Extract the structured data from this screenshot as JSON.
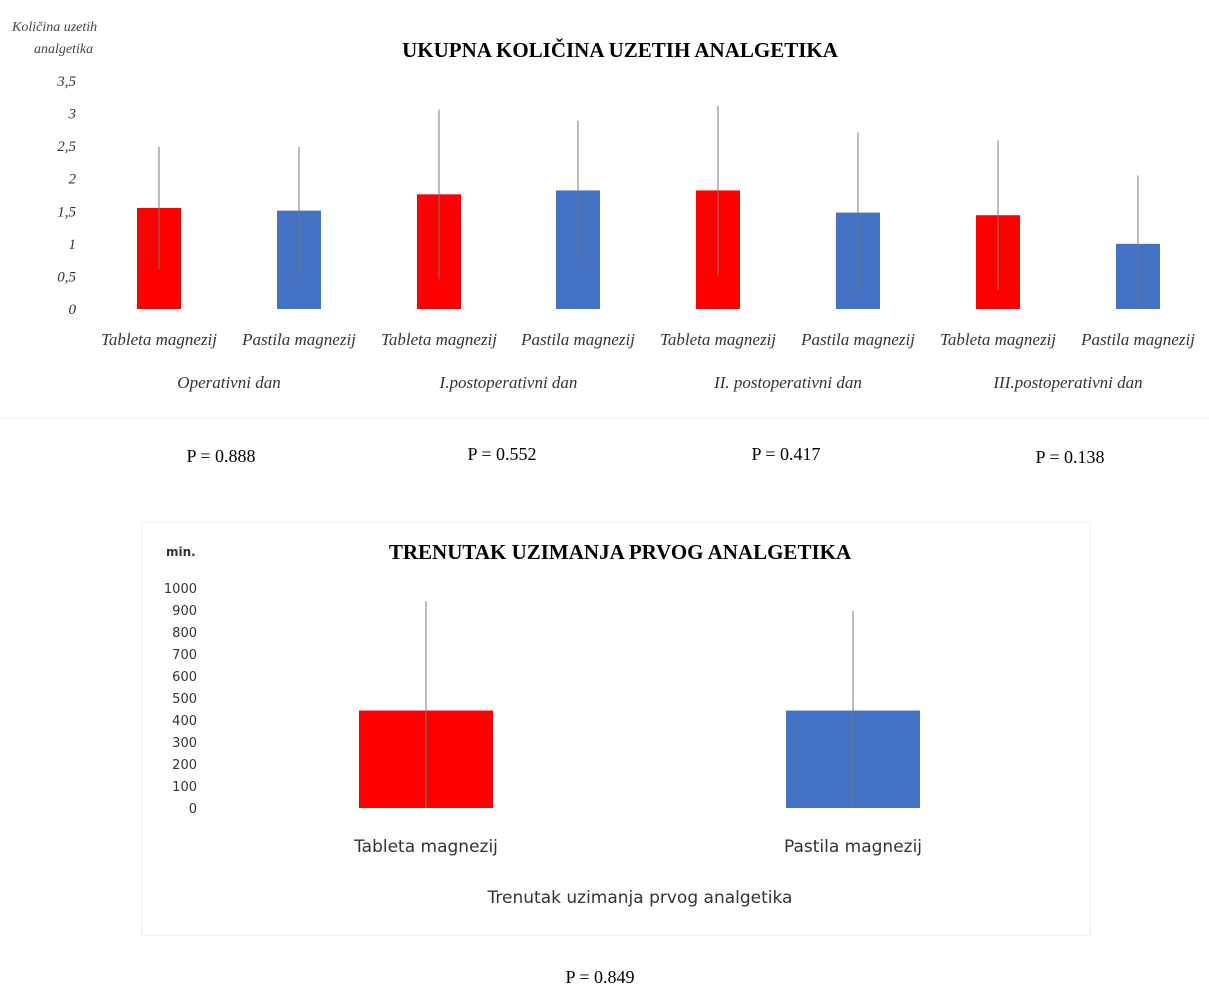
{
  "colors": {
    "tableta": "#ff0000",
    "pastila": "#4472c4",
    "errorbar": "#777777"
  },
  "chart_data": [
    {
      "type": "bar",
      "title": "UKUPNA KOLIČINA UZETIH ANALGETIKA",
      "ylabel_lines": [
        "Količina uzetih",
        "analgetika"
      ],
      "ylim": [
        0,
        3.5
      ],
      "yticks": [
        "0",
        "0,5",
        "1",
        "1,5",
        "2",
        "2,5",
        "3",
        "3,5"
      ],
      "groups": [
        "Operativni dan",
        "I.postoperativni dan",
        "II. postoperativni dan",
        "III.postoperativni dan"
      ],
      "categories": [
        "Tableta magnezij",
        "Pastila magnezij",
        "Tableta magnezij",
        "Pastila magnezij",
        "Tableta magnezij",
        "Pastila magnezij",
        "Tableta magnezij",
        "Pastila magnezij"
      ],
      "values": [
        1.55,
        1.51,
        1.76,
        1.82,
        1.82,
        1.48,
        1.44,
        1.0
      ],
      "error": [
        0.94,
        0.98,
        1.3,
        1.07,
        1.3,
        1.23,
        1.15,
        1.05
      ],
      "bar_colors": [
        "#ff0000",
        "#4472c4",
        "#ff0000",
        "#4472c4",
        "#ff0000",
        "#4472c4",
        "#ff0000",
        "#4472c4"
      ],
      "legend": "none",
      "grid": false
    },
    {
      "type": "bar",
      "title": "TRENUTAK UZIMANJA PRVOG ANALGETIKA",
      "ylabel": "min.",
      "xlabel": "Trenutak uzimanja prvog analgetika",
      "ylim": [
        0,
        1000
      ],
      "yticks": [
        "0",
        "100",
        "200",
        "300",
        "400",
        "500",
        "600",
        "700",
        "800",
        "900",
        "1000"
      ],
      "categories": [
        "Tableta magnezij",
        "Pastila magnezij"
      ],
      "values": [
        443,
        443
      ],
      "error": [
        497,
        453
      ],
      "bar_colors": [
        "#ff0000",
        "#4472c4"
      ],
      "legend": "none",
      "grid": false
    }
  ],
  "pvalues_top": [
    "P = 0.888",
    "P = 0.552",
    "P = 0.417",
    "P = 0.138"
  ],
  "pvalue_bottom": "P = 0.849"
}
